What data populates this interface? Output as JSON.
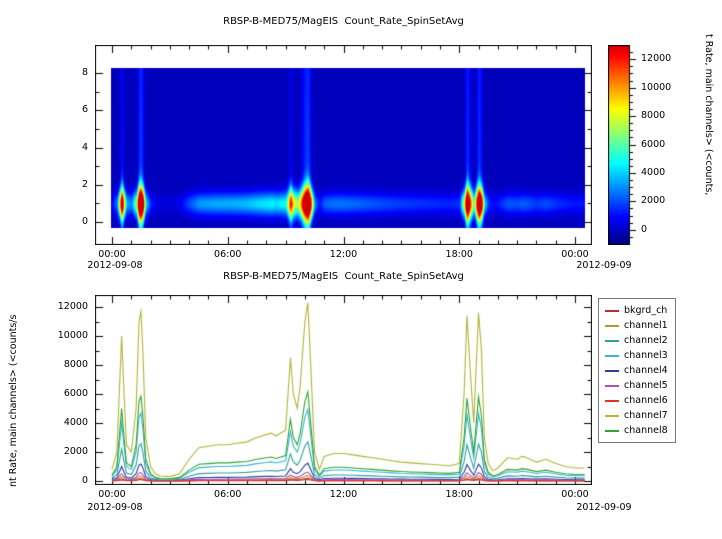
{
  "window": {
    "background": "#ffffff",
    "frame_color": "#000000"
  },
  "chart_data": [
    {
      "type": "heatmap",
      "title": "RBSP-B-MED75/MagEIS  Count_Rate_SpinSetAvg",
      "x_ticks": [
        "00:00",
        "06:00",
        "12:00",
        "18:00",
        "00:00"
      ],
      "x_tick_hours": [
        0,
        6,
        12,
        18,
        24
      ],
      "x_date_start": "2012-09-08",
      "x_date_end": "2012-09-09",
      "ylim": [
        0,
        8
      ],
      "y_ticks": [
        0,
        2,
        4,
        6,
        8
      ],
      "max_counts": 12300,
      "colorbar": {
        "label": "t Rate, main channels> (<counts,",
        "ticks": [
          0,
          2000,
          4000,
          6000,
          8000,
          10000,
          12000
        ],
        "range": [
          -1000,
          13000
        ],
        "colormap": "jet"
      },
      "band": {
        "center_y": 1.0,
        "sigma_y": 0.5,
        "time_hours": [
          0,
          0.25,
          0.5,
          0.625,
          0.75,
          1,
          1.25,
          1.4,
          1.5,
          1.6,
          1.75,
          2,
          2.25,
          2.5,
          3,
          3.5,
          4,
          4.5,
          5,
          5.5,
          6,
          6.5,
          7,
          7.5,
          8,
          8.25,
          8.5,
          9,
          9.25,
          9.4,
          9.6,
          9.75,
          10,
          10.15,
          10.3,
          10.5,
          10.75,
          11,
          11.5,
          12,
          12.5,
          13,
          13.5,
          14,
          14.5,
          15,
          15.5,
          16,
          16.5,
          17,
          17.5,
          18,
          18.25,
          18.4,
          18.6,
          18.75,
          19,
          19.15,
          19.3,
          19.5,
          19.75,
          20,
          20.5,
          21,
          21.25,
          21.5,
          22,
          22.5,
          23,
          23.5,
          24
        ],
        "peak_counts": [
          800,
          2000,
          10000,
          6000,
          2500,
          2000,
          5000,
          11000,
          11700,
          9000,
          3000,
          1000,
          500,
          350,
          300,
          500,
          1500,
          2300,
          2400,
          2500,
          2500,
          2600,
          2700,
          3000,
          3200,
          3300,
          3100,
          3500,
          8500,
          6000,
          5000,
          6500,
          11000,
          12300,
          8000,
          2000,
          800,
          1700,
          1900,
          1900,
          1800,
          1700,
          1600,
          1500,
          1400,
          1300,
          1250,
          1200,
          1150,
          1100,
          1050,
          1200,
          6000,
          11400,
          7000,
          4000,
          11600,
          9000,
          3000,
          1200,
          700,
          900,
          1600,
          1500,
          1700,
          1600,
          1300,
          1500,
          1200,
          1000,
          900
        ]
      }
    },
    {
      "type": "line",
      "title": "RBSP-B-MED75/MagEIS  Count_Rate_SpinSetAvg",
      "ylabel": "nt Rate, main channels> (<counts/s",
      "ylim": [
        0,
        12000
      ],
      "y_ticks": [
        0,
        2000,
        4000,
        6000,
        8000,
        10000,
        12000
      ],
      "x_ticks": [
        "00:00",
        "06:00",
        "12:00",
        "18:00",
        "00:00"
      ],
      "x_tick_hours": [
        0,
        6,
        12,
        18,
        24
      ],
      "x_date_start": "2012-09-08",
      "x_date_end": "2012-09-09",
      "legend_position": "top-right-outside",
      "x_hours": [
        0,
        0.25,
        0.5,
        0.625,
        0.75,
        1,
        1.25,
        1.4,
        1.5,
        1.6,
        1.75,
        2,
        2.25,
        2.5,
        3,
        3.5,
        4,
        4.5,
        5,
        5.5,
        6,
        6.5,
        7,
        7.5,
        8,
        8.25,
        8.5,
        9,
        9.25,
        9.4,
        9.6,
        9.75,
        10,
        10.15,
        10.3,
        10.5,
        10.75,
        11,
        11.5,
        12,
        12.5,
        13,
        13.5,
        14,
        14.5,
        15,
        15.5,
        16,
        16.5,
        17,
        17.5,
        18,
        18.25,
        18.4,
        18.6,
        18.75,
        19,
        19.15,
        19.3,
        19.5,
        19.75,
        20,
        20.5,
        21,
        21.25,
        21.5,
        22,
        22.5,
        23,
        23.5,
        24
      ],
      "series": [
        {
          "name": "bkgrd_ch",
          "color": "#aa3333",
          "values": [
            6,
            16,
            80,
            48,
            20,
            16,
            40,
            88,
            94,
            72,
            24,
            8,
            4,
            3,
            2,
            4,
            12,
            18,
            19,
            20,
            20,
            21,
            22,
            24,
            26,
            26,
            25,
            28,
            68,
            48,
            40,
            52,
            88,
            98,
            64,
            16,
            6,
            14,
            15,
            15,
            14,
            14,
            13,
            12,
            11,
            10,
            10,
            10,
            9,
            9,
            8,
            10,
            48,
            91,
            56,
            32,
            93,
            72,
            24,
            10,
            6,
            7,
            13,
            12,
            14,
            13,
            10,
            12,
            10,
            8,
            7
          ]
        },
        {
          "name": "channel1",
          "color": "#b09a30",
          "values": [
            24,
            60,
            300,
            180,
            75,
            60,
            150,
            330,
            351,
            270,
            90,
            30,
            15,
            11,
            9,
            15,
            45,
            69,
            72,
            75,
            75,
            78,
            81,
            90,
            96,
            99,
            93,
            105,
            255,
            180,
            150,
            195,
            330,
            369,
            240,
            60,
            24,
            51,
            57,
            57,
            54,
            51,
            48,
            45,
            42,
            39,
            38,
            36,
            35,
            33,
            32,
            36,
            180,
            342,
            210,
            120,
            348,
            270,
            90,
            36,
            21,
            27,
            48,
            45,
            51,
            48,
            39,
            45,
            36,
            30,
            27
          ]
        },
        {
          "name": "channel2",
          "color": "#2f9f9f",
          "values": [
            176,
            440,
            2200,
            1320,
            550,
            440,
            1100,
            2420,
            2574,
            1980,
            660,
            220,
            110,
            77,
            66,
            110,
            330,
            506,
            528,
            550,
            550,
            572,
            594,
            660,
            704,
            726,
            682,
            770,
            1870,
            1320,
            1100,
            1430,
            2420,
            2706,
            1760,
            440,
            176,
            374,
            418,
            418,
            396,
            374,
            352,
            330,
            308,
            286,
            275,
            264,
            253,
            242,
            231,
            264,
            1320,
            2508,
            1540,
            880,
            2552,
            1980,
            660,
            264,
            154,
            198,
            352,
            330,
            374,
            352,
            286,
            330,
            264,
            220,
            198
          ]
        },
        {
          "name": "channel3",
          "color": "#3ab5d5",
          "values": [
            320,
            800,
            4000,
            2400,
            1000,
            800,
            2000,
            4400,
            4680,
            3600,
            1200,
            400,
            200,
            140,
            120,
            200,
            600,
            920,
            960,
            1000,
            1000,
            1040,
            1080,
            1200,
            1280,
            1320,
            1240,
            1400,
            3400,
            2400,
            2000,
            2600,
            4400,
            4920,
            3200,
            800,
            320,
            680,
            760,
            760,
            720,
            680,
            640,
            600,
            560,
            520,
            500,
            480,
            460,
            440,
            420,
            480,
            2400,
            4560,
            2800,
            1600,
            4640,
            3600,
            1200,
            480,
            280,
            360,
            640,
            600,
            680,
            640,
            520,
            600,
            480,
            400,
            360
          ]
        },
        {
          "name": "channel4",
          "color": "#2b3f9e",
          "values": [
            80,
            200,
            1000,
            600,
            250,
            200,
            500,
            1100,
            1170,
            900,
            300,
            100,
            50,
            35,
            30,
            50,
            150,
            230,
            240,
            250,
            250,
            260,
            270,
            300,
            320,
            330,
            310,
            350,
            850,
            600,
            500,
            650,
            1100,
            1230,
            800,
            200,
            80,
            170,
            190,
            190,
            180,
            170,
            160,
            150,
            140,
            130,
            125,
            120,
            115,
            110,
            105,
            120,
            600,
            1140,
            700,
            400,
            1160,
            900,
            300,
            120,
            70,
            90,
            160,
            150,
            170,
            160,
            130,
            150,
            120,
            100,
            90
          ]
        },
        {
          "name": "channel5",
          "color": "#b050c0",
          "values": [
            40,
            100,
            500,
            300,
            125,
            100,
            250,
            550,
            585,
            450,
            150,
            50,
            25,
            18,
            15,
            25,
            75,
            115,
            120,
            125,
            125,
            130,
            135,
            150,
            160,
            165,
            155,
            175,
            425,
            300,
            250,
            325,
            550,
            615,
            400,
            100,
            40,
            85,
            95,
            95,
            90,
            85,
            80,
            75,
            70,
            65,
            63,
            60,
            58,
            55,
            53,
            60,
            300,
            570,
            350,
            200,
            580,
            450,
            150,
            60,
            35,
            45,
            80,
            75,
            85,
            80,
            65,
            75,
            60,
            50,
            45
          ]
        },
        {
          "name": "channel6",
          "color": "#e03030",
          "values": [
            12,
            30,
            150,
            90,
            38,
            30,
            75,
            165,
            176,
            135,
            45,
            15,
            8,
            5,
            5,
            8,
            23,
            35,
            36,
            38,
            38,
            39,
            41,
            45,
            48,
            50,
            47,
            53,
            128,
            90,
            75,
            98,
            165,
            185,
            120,
            30,
            12,
            26,
            29,
            29,
            27,
            26,
            24,
            23,
            21,
            20,
            19,
            18,
            17,
            17,
            16,
            18,
            90,
            171,
            105,
            60,
            174,
            135,
            45,
            18,
            11,
            14,
            24,
            23,
            26,
            24,
            20,
            23,
            18,
            15,
            14
          ]
        },
        {
          "name": "channel7",
          "color": "#b3b336",
          "values": [
            800,
            2000,
            10000,
            6000,
            2500,
            2000,
            5000,
            11000,
            11700,
            9000,
            3000,
            1000,
            500,
            350,
            300,
            500,
            1500,
            2300,
            2400,
            2500,
            2500,
            2600,
            2700,
            3000,
            3200,
            3300,
            3100,
            3500,
            8500,
            6000,
            5000,
            6500,
            11000,
            12300,
            8000,
            2000,
            800,
            1700,
            1900,
            1900,
            1800,
            1700,
            1600,
            1500,
            1400,
            1300,
            1250,
            1200,
            1150,
            1100,
            1050,
            1200,
            6000,
            11400,
            7000,
            4000,
            11600,
            9000,
            3000,
            1200,
            700,
            900,
            1600,
            1500,
            1700,
            1600,
            1300,
            1500,
            1200,
            1000,
            900
          ]
        },
        {
          "name": "channel8",
          "color": "#2fa42f",
          "values": [
            400,
            1000,
            5000,
            3000,
            1250,
            1000,
            2500,
            5500,
            5850,
            4500,
            1500,
            500,
            250,
            175,
            150,
            250,
            750,
            1150,
            1200,
            1250,
            1250,
            1300,
            1350,
            1500,
            1600,
            1650,
            1550,
            1750,
            4250,
            3000,
            2500,
            3250,
            5500,
            6150,
            4000,
            1000,
            400,
            850,
            950,
            950,
            900,
            850,
            800,
            750,
            700,
            650,
            625,
            600,
            575,
            550,
            525,
            600,
            3000,
            5700,
            3500,
            2000,
            5800,
            4500,
            1500,
            600,
            350,
            450,
            800,
            750,
            850,
            800,
            650,
            750,
            600,
            500,
            450
          ]
        }
      ]
    }
  ]
}
